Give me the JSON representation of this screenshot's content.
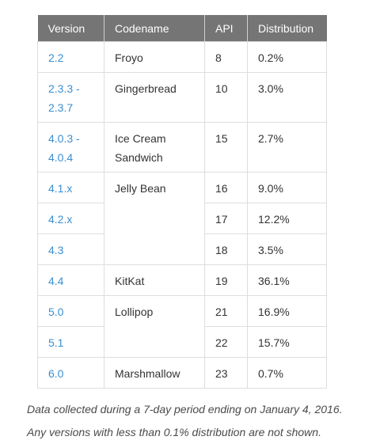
{
  "table": {
    "headers": [
      "Version",
      "Codename",
      "API",
      "Distribution"
    ],
    "rows": [
      {
        "version": "2.2",
        "codename": "Froyo",
        "api": "8",
        "distribution": "0.2%"
      },
      {
        "version": "2.3.3 - 2.3.7",
        "codename": "Gingerbread",
        "api": "10",
        "distribution": "3.0%"
      },
      {
        "version": "4.0.3 - 4.0.4",
        "codename": "Ice Cream Sandwich",
        "api": "15",
        "distribution": "2.7%"
      },
      {
        "version": "4.1.x",
        "codename": "Jelly Bean",
        "api": "16",
        "distribution": "9.0%"
      },
      {
        "version": "4.2.x",
        "codename": "",
        "api": "17",
        "distribution": "12.2%"
      },
      {
        "version": "4.3",
        "codename": "",
        "api": "18",
        "distribution": "3.5%"
      },
      {
        "version": "4.4",
        "codename": "KitKat",
        "api": "19",
        "distribution": "36.1%"
      },
      {
        "version": "5.0",
        "codename": "Lollipop",
        "api": "21",
        "distribution": "16.9%"
      },
      {
        "version": "5.1",
        "codename": "",
        "api": "22",
        "distribution": "15.7%"
      },
      {
        "version": "6.0",
        "codename": "Marshmallow",
        "api": "23",
        "distribution": "0.7%"
      }
    ]
  },
  "footnote": {
    "line1": "Data collected during a 7-day period ending on January 4, 2016.",
    "line2": "Any versions with less than 0.1% distribution are not shown."
  }
}
